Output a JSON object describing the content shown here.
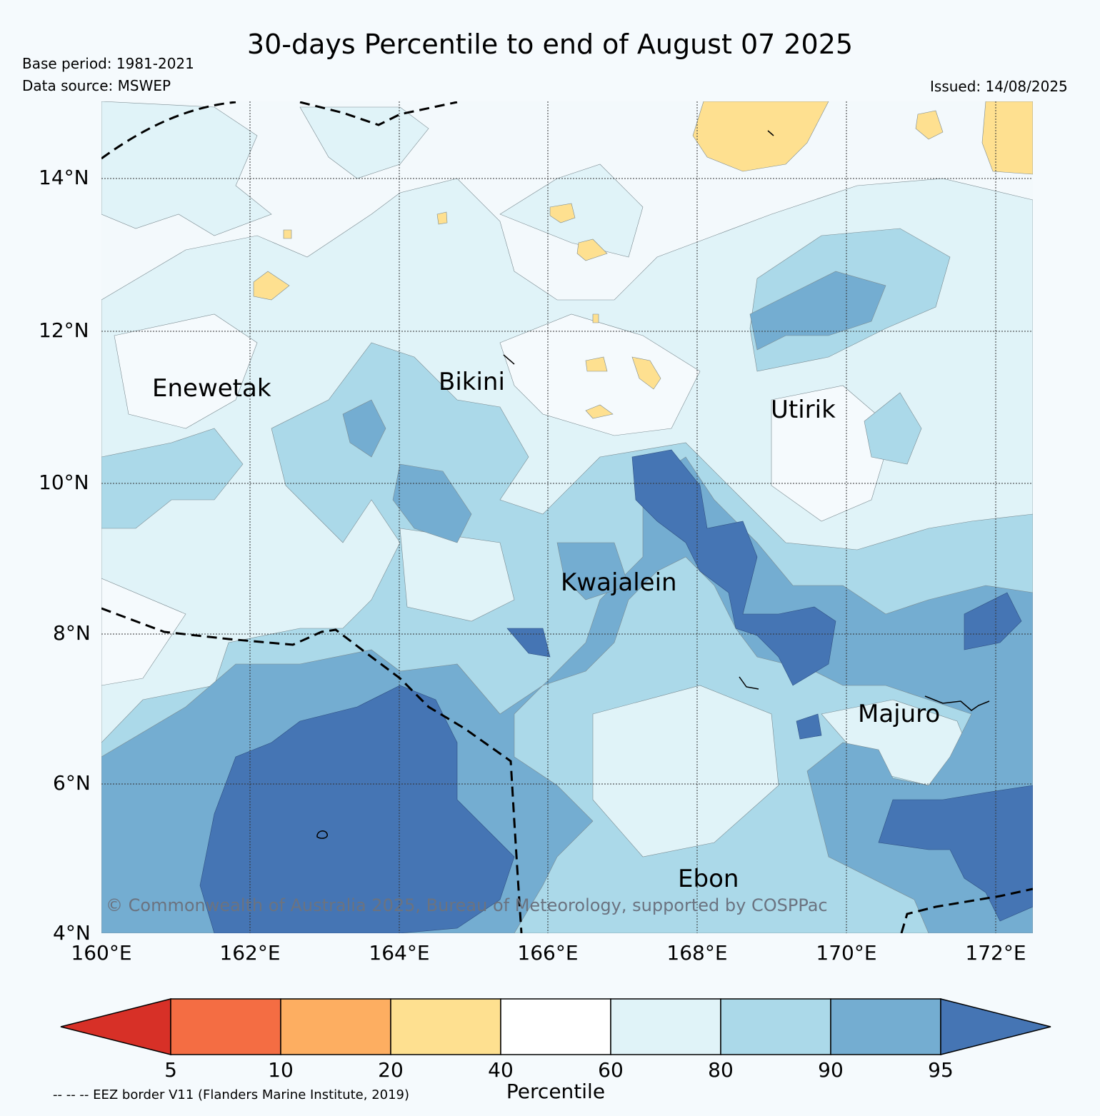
{
  "header": {
    "title": "30-days Percentile to end of August 07 2025",
    "base_period": "Base period: 1981-2021",
    "data_source": "Data source: MSWEP",
    "issued": "Issued: 14/08/2025"
  },
  "map": {
    "lat_labels": [
      "14°N",
      "12°N",
      "10°N",
      "8°N",
      "6°N",
      "4°N"
    ],
    "lon_labels": [
      "160°E",
      "162°E",
      "164°E",
      "166°E",
      "168°E",
      "170°E",
      "172°E"
    ],
    "places": {
      "enewetak": "Enewetak",
      "bikini": "Bikini",
      "utirik": "Utirik",
      "kwajalein": "Kwajalein",
      "majuro": "Majuro",
      "ebon": "Ebon"
    },
    "copyright": "© Commonwealth of Australia 2025, Bureau of Meteorology, supported by COSPPac"
  },
  "colorbar": {
    "title": "Percentile",
    "ticks": [
      "5",
      "10",
      "20",
      "40",
      "60",
      "80",
      "90",
      "95"
    ],
    "colors": [
      "#d73027",
      "#f46d43",
      "#fdae61",
      "#fee090",
      "#ffffff",
      "#e0f3f8",
      "#abd9e9",
      "#74add1",
      "#4575b4"
    ]
  },
  "footer": {
    "eez_note": "-- -- -- EEZ border V11 (Flanders Marine Institute, 2019)"
  }
}
